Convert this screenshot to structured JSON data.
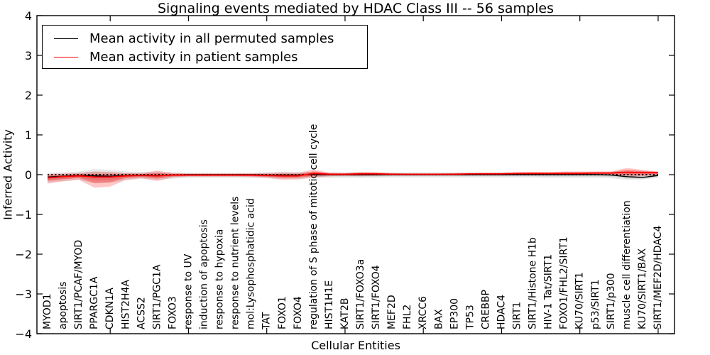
{
  "chart_data": {
    "type": "line",
    "title": "Signaling events mediated by HDAC Class III -- 56 samples",
    "xlabel": "Cellular Entities",
    "ylabel": "Inferred Activity",
    "ylim": [
      -4,
      4
    ],
    "yticks": [
      -4,
      -3,
      -2,
      -1,
      0,
      1,
      2,
      3,
      4
    ],
    "grid": false,
    "legend_position": "upper left",
    "categories": [
      "MYOD1",
      "apoptosis",
      "SIRT1/PCAF/MYOD",
      "PPARGC1A",
      "CDKN1A",
      "HIST2H4A",
      "ACSS2",
      "SIRT1/PGC1A",
      "FOXO3",
      "response to UV",
      "induction of apoptosis",
      "response to hypoxia",
      "response to nutrient levels",
      "mol:Lysophosphatidic acid",
      "TAT",
      "FOXO1",
      "FOXO4",
      "regulation of S phase of mitotic cell cycle",
      "HIST1H1E",
      "KAT2B",
      "SIRT1/FOXO3a",
      "SIRT1/FOXO4",
      "MEF2D",
      "FHL2",
      "XRCC6",
      "BAX",
      "EP300",
      "TP53",
      "CREBBP",
      "HDAC4",
      "SIRT1",
      "SIRT1/Histone H1b",
      "HIV-1 Tat/SIRT1",
      "FOXO1/FHL2/SIRT1",
      "KU70/SIRT1",
      "p53/SIRT1",
      "SIRT1/p300",
      "muscle cell differentiation",
      "KU70/SIRT1/BAX",
      "SIRT1/MEF2D/HDAC4"
    ],
    "series": [
      {
        "name": "Mean activity in all permuted samples",
        "color": "#000000",
        "style": "solid",
        "values": [
          -0.06,
          -0.04,
          -0.02,
          -0.03,
          -0.04,
          -0.02,
          -0.01,
          -0.02,
          -0.01,
          0,
          0,
          0,
          0,
          0,
          -0.01,
          -0.01,
          -0.01,
          0,
          0,
          0,
          0,
          0,
          0,
          0,
          0,
          0,
          0,
          0,
          0,
          0,
          0,
          0,
          0,
          0,
          0,
          0,
          -0.01,
          -0.05,
          -0.07,
          -0.02
        ]
      },
      {
        "name": "Mean activity in patient samples",
        "color": "#ff0000",
        "style": "solid",
        "values": [
          -0.08,
          -0.05,
          -0.03,
          -0.06,
          -0.06,
          -0.03,
          -0.02,
          -0.03,
          -0.01,
          -0.01,
          -0.01,
          -0.01,
          -0.01,
          -0.01,
          -0.02,
          -0.03,
          -0.03,
          0.03,
          0.01,
          0.01,
          0.02,
          0.02,
          0.01,
          0.01,
          0.01,
          0.01,
          0.01,
          0.02,
          0.02,
          0.02,
          0.03,
          0.03,
          0.03,
          0.03,
          0.03,
          0.04,
          0.04,
          0.06,
          0.05,
          0.05
        ]
      }
    ],
    "reference_line": {
      "y": 0,
      "style": "dotted",
      "color": "#000000"
    },
    "bands": [
      {
        "name": "permuted samples spread",
        "color": "#000000",
        "opacity": 0.09,
        "upper": [
          0.05,
          0.06,
          0.08,
          0.14,
          0.12,
          0.08,
          0.07,
          0.08,
          0.06,
          0.05,
          0.05,
          0.05,
          0.05,
          0.05,
          0.06,
          0.07,
          0.07,
          0.07,
          0.06,
          0.06,
          0.06,
          0.06,
          0.06,
          0.06,
          0.06,
          0.06,
          0.06,
          0.06,
          0.06,
          0.06,
          0.06,
          0.06,
          0.07,
          0.07,
          0.07,
          0.07,
          0.08,
          0.1,
          0.1,
          0.07
        ],
        "lower": [
          -0.2,
          -0.16,
          -0.13,
          -0.22,
          -0.2,
          -0.14,
          -0.11,
          -0.13,
          -0.1,
          -0.08,
          -0.08,
          -0.08,
          -0.08,
          -0.08,
          -0.09,
          -0.1,
          -0.1,
          -0.09,
          -0.08,
          -0.08,
          -0.08,
          -0.08,
          -0.07,
          -0.07,
          -0.07,
          -0.07,
          -0.07,
          -0.07,
          -0.07,
          -0.07,
          -0.07,
          -0.07,
          -0.08,
          -0.08,
          -0.08,
          -0.08,
          -0.09,
          -0.13,
          -0.12,
          -0.08
        ]
      },
      {
        "name": "patient samples spread",
        "color": "#ff0000",
        "opacity": 0.22,
        "upper": [
          0.02,
          0.03,
          0.04,
          0.08,
          0.07,
          0.04,
          0.04,
          0.1,
          0.04,
          0.03,
          0.03,
          0.03,
          0.03,
          0.03,
          0.04,
          0.06,
          0.05,
          0.13,
          0.05,
          0.04,
          0.07,
          0.06,
          0.04,
          0.03,
          0.03,
          0.03,
          0.04,
          0.04,
          0.05,
          0.05,
          0.06,
          0.07,
          0.06,
          0.08,
          0.08,
          0.08,
          0.08,
          0.17,
          0.12,
          0.08
        ],
        "lower": [
          -0.22,
          -0.17,
          -0.13,
          -0.33,
          -0.3,
          -0.13,
          -0.09,
          -0.16,
          -0.07,
          -0.05,
          -0.05,
          -0.05,
          -0.05,
          -0.06,
          -0.08,
          -0.13,
          -0.12,
          -0.07,
          -0.04,
          -0.03,
          -0.04,
          -0.03,
          -0.02,
          -0.02,
          -0.02,
          -0.02,
          -0.02,
          -0.02,
          -0.01,
          -0.01,
          -0.01,
          -0.01,
          -0.01,
          -0.01,
          -0.01,
          -0.01,
          -0.01,
          -0.06,
          -0.04,
          -0.01
        ]
      }
    ]
  },
  "colors": {
    "axis": "#000000",
    "background": "#ffffff",
    "permuted_line": "#000000",
    "patient_line": "#ff0000"
  }
}
